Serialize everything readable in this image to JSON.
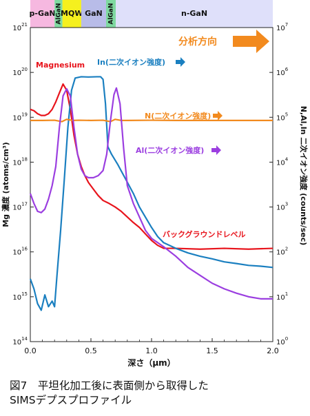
{
  "chart_data": {
    "type": "line",
    "title": "",
    "xlabel": "深さ（μm）",
    "ylabel_left": "Mg 濃度 (atoms/cm³)",
    "ylabel_right": "N,Al,In 二次イオン強度 (counts/sec)",
    "xlim": [
      0,
      2.0
    ],
    "x_ticks": [
      "0.0",
      "0.5",
      "1.0",
      "1.5",
      "2.0"
    ],
    "y_left_scale": "log",
    "y_left_lim": [
      100000000000000.0,
      1e+21
    ],
    "y_left_ticks": [
      {
        "base": "10",
        "exp": "14"
      },
      {
        "base": "10",
        "exp": "15"
      },
      {
        "base": "10",
        "exp": "16"
      },
      {
        "base": "10",
        "exp": "17"
      },
      {
        "base": "10",
        "exp": "18"
      },
      {
        "base": "10",
        "exp": "19"
      },
      {
        "base": "10",
        "exp": "20"
      },
      {
        "base": "10",
        "exp": "21"
      }
    ],
    "y_right_scale": "log",
    "y_right_lim": [
      1,
      10000000.0
    ],
    "y_right_ticks": [
      {
        "base": "10",
        "exp": "0"
      },
      {
        "base": "10",
        "exp": "1"
      },
      {
        "base": "10",
        "exp": "2"
      },
      {
        "base": "10",
        "exp": "3"
      },
      {
        "base": "10",
        "exp": "4"
      },
      {
        "base": "10",
        "exp": "5"
      },
      {
        "base": "10",
        "exp": "6"
      },
      {
        "base": "10",
        "exp": "7"
      }
    ],
    "layers": [
      {
        "label": "p-GaN",
        "x0": 0.0,
        "x1": 0.2,
        "color": "#f6b8e0",
        "vertical": false
      },
      {
        "label": "AlGaN",
        "x0": 0.2,
        "x1": 0.265,
        "color": "#7fd9a0",
        "vertical": true
      },
      {
        "label": "MQW",
        "x0": 0.265,
        "x1": 0.42,
        "color": "#f5f01e",
        "vertical": false
      },
      {
        "label": "GaN",
        "x0": 0.42,
        "x1": 0.625,
        "color": "#b8bce8",
        "vertical": false
      },
      {
        "label": "AlGaN",
        "x0": 0.625,
        "x1": 0.705,
        "color": "#7fd9a0",
        "vertical": true
      },
      {
        "label": "n-GaN",
        "x0": 0.705,
        "x1": 2.0,
        "color": "#dfe0fa",
        "vertical": false
      }
    ],
    "series": [
      {
        "name": "Magnesium",
        "axis": "left",
        "color": "#e8141c",
        "noise": 0.0,
        "points": [
          [
            0.0,
            1.5e+19
          ],
          [
            0.03,
            1.4e+19
          ],
          [
            0.06,
            1.2e+19
          ],
          [
            0.09,
            1.1e+19
          ],
          [
            0.12,
            1.1e+19
          ],
          [
            0.15,
            1.2e+19
          ],
          [
            0.18,
            1.5e+19
          ],
          [
            0.21,
            2.2e+19
          ],
          [
            0.24,
            3.5e+19
          ],
          [
            0.27,
            5.5e+19
          ],
          [
            0.3,
            4e+19
          ],
          [
            0.33,
            1.5e+19
          ],
          [
            0.36,
            4e+18
          ],
          [
            0.39,
            1.5e+18
          ],
          [
            0.42,
            8e+17
          ],
          [
            0.45,
            5e+17
          ],
          [
            0.48,
            3.5e+17
          ],
          [
            0.52,
            2.5e+17
          ],
          [
            0.56,
            1.8e+17
          ],
          [
            0.6,
            1.4e+17
          ],
          [
            0.65,
            1.2e+17
          ],
          [
            0.7,
            1e+17
          ],
          [
            0.75,
            8e+16
          ],
          [
            0.8,
            6e+16
          ],
          [
            0.85,
            4.5e+16
          ],
          [
            0.9,
            3.5e+16
          ],
          [
            0.95,
            2.5e+16
          ],
          [
            1.0,
            1.8e+16
          ],
          [
            1.05,
            1.4e+16
          ],
          [
            1.1,
            1.2e+16
          ],
          [
            1.2,
            1.2e+16
          ],
          [
            1.4,
            1.15e+16
          ],
          [
            1.6,
            1.2e+16
          ],
          [
            1.8,
            1.15e+16
          ],
          [
            2.0,
            1.2e+16
          ]
        ]
      },
      {
        "name": "In(二次イオン強度)",
        "axis": "right",
        "color": "#1a7fc0",
        "noise": 0.0,
        "points": [
          [
            0.0,
            25
          ],
          [
            0.03,
            15
          ],
          [
            0.06,
            7
          ],
          [
            0.09,
            5
          ],
          [
            0.12,
            11
          ],
          [
            0.15,
            6
          ],
          [
            0.18,
            8
          ],
          [
            0.2,
            6
          ],
          [
            0.22,
            30
          ],
          [
            0.25,
            300
          ],
          [
            0.28,
            4000
          ],
          [
            0.31,
            60000
          ],
          [
            0.34,
            400000
          ],
          [
            0.37,
            750000
          ],
          [
            0.42,
            800000
          ],
          [
            0.48,
            790000
          ],
          [
            0.55,
            800000
          ],
          [
            0.58,
            800000
          ],
          [
            0.6,
            700000
          ],
          [
            0.62,
            200000
          ],
          [
            0.64,
            22000
          ],
          [
            0.67,
            15000
          ],
          [
            0.72,
            9000
          ],
          [
            0.78,
            4500
          ],
          [
            0.85,
            2000
          ],
          [
            0.9,
            1000
          ],
          [
            1.0,
            350
          ],
          [
            1.05,
            220
          ],
          [
            1.1,
            160
          ],
          [
            1.2,
            120
          ],
          [
            1.3,
            95
          ],
          [
            1.4,
            80
          ],
          [
            1.5,
            70
          ],
          [
            1.6,
            60
          ],
          [
            1.7,
            55
          ],
          [
            1.8,
            50
          ],
          [
            1.9,
            48
          ],
          [
            2.0,
            45
          ]
        ]
      },
      {
        "name": "N(二次イオン強度)",
        "axis": "right",
        "color": "#f28a1e",
        "noise": 0.0,
        "points": [
          [
            0.0,
            85000
          ],
          [
            0.1,
            85000
          ],
          [
            0.2,
            86000
          ],
          [
            0.26,
            80000
          ],
          [
            0.3,
            90000
          ],
          [
            0.35,
            85000
          ],
          [
            0.4,
            86000
          ],
          [
            0.5,
            85000
          ],
          [
            0.6,
            86000
          ],
          [
            0.66,
            80000
          ],
          [
            0.7,
            90000
          ],
          [
            0.75,
            85000
          ],
          [
            0.8,
            85000
          ],
          [
            1.0,
            86000
          ],
          [
            1.2,
            85000
          ],
          [
            1.4,
            85000
          ],
          [
            1.6,
            85000
          ],
          [
            1.8,
            85000
          ],
          [
            2.0,
            85000
          ]
        ]
      },
      {
        "name": "Al(二次イオン強度)",
        "axis": "right",
        "color": "#9b3ee0",
        "noise": 0.0,
        "points": [
          [
            0.0,
            2000
          ],
          [
            0.03,
            1200
          ],
          [
            0.06,
            800
          ],
          [
            0.09,
            750
          ],
          [
            0.12,
            900
          ],
          [
            0.15,
            1500
          ],
          [
            0.18,
            3000
          ],
          [
            0.21,
            8000
          ],
          [
            0.24,
            60000
          ],
          [
            0.27,
            300000
          ],
          [
            0.3,
            430000
          ],
          [
            0.33,
            300000
          ],
          [
            0.36,
            60000
          ],
          [
            0.39,
            15000
          ],
          [
            0.42,
            7000
          ],
          [
            0.45,
            5000
          ],
          [
            0.48,
            4500
          ],
          [
            0.52,
            4500
          ],
          [
            0.56,
            5000
          ],
          [
            0.6,
            6500
          ],
          [
            0.63,
            15000
          ],
          [
            0.66,
            80000
          ],
          [
            0.69,
            320000
          ],
          [
            0.71,
            450000
          ],
          [
            0.74,
            200000
          ],
          [
            0.77,
            20000
          ],
          [
            0.8,
            3000
          ],
          [
            0.85,
            1200
          ],
          [
            0.9,
            600
          ],
          [
            0.95,
            300
          ],
          [
            1.0,
            200
          ],
          [
            1.1,
            130
          ],
          [
            1.2,
            80
          ],
          [
            1.3,
            45
          ],
          [
            1.4,
            30
          ],
          [
            1.5,
            20
          ],
          [
            1.6,
            15
          ],
          [
            1.7,
            12
          ],
          [
            1.8,
            10
          ],
          [
            1.9,
            9
          ],
          [
            2.0,
            9
          ]
        ]
      }
    ],
    "annotations": {
      "magnesium": "Magnesium",
      "indium": "In(二次イオン強度)",
      "nitrogen": "N(二次イオン強度)",
      "aluminum": "Al(二次イオン強度)",
      "background": "バックグラウンドレベル",
      "direction": "分析方向"
    }
  },
  "caption": {
    "line1": "図7　平坦化加工後に表面側から取得した",
    "line2": "SIMSデプスプロファイル"
  },
  "colors": {
    "magnesium": "#e8141c",
    "indium": "#1a7fc0",
    "nitrogen": "#f28a1e",
    "aluminum": "#9b3ee0",
    "direction_arrow": "#f28a1e"
  }
}
